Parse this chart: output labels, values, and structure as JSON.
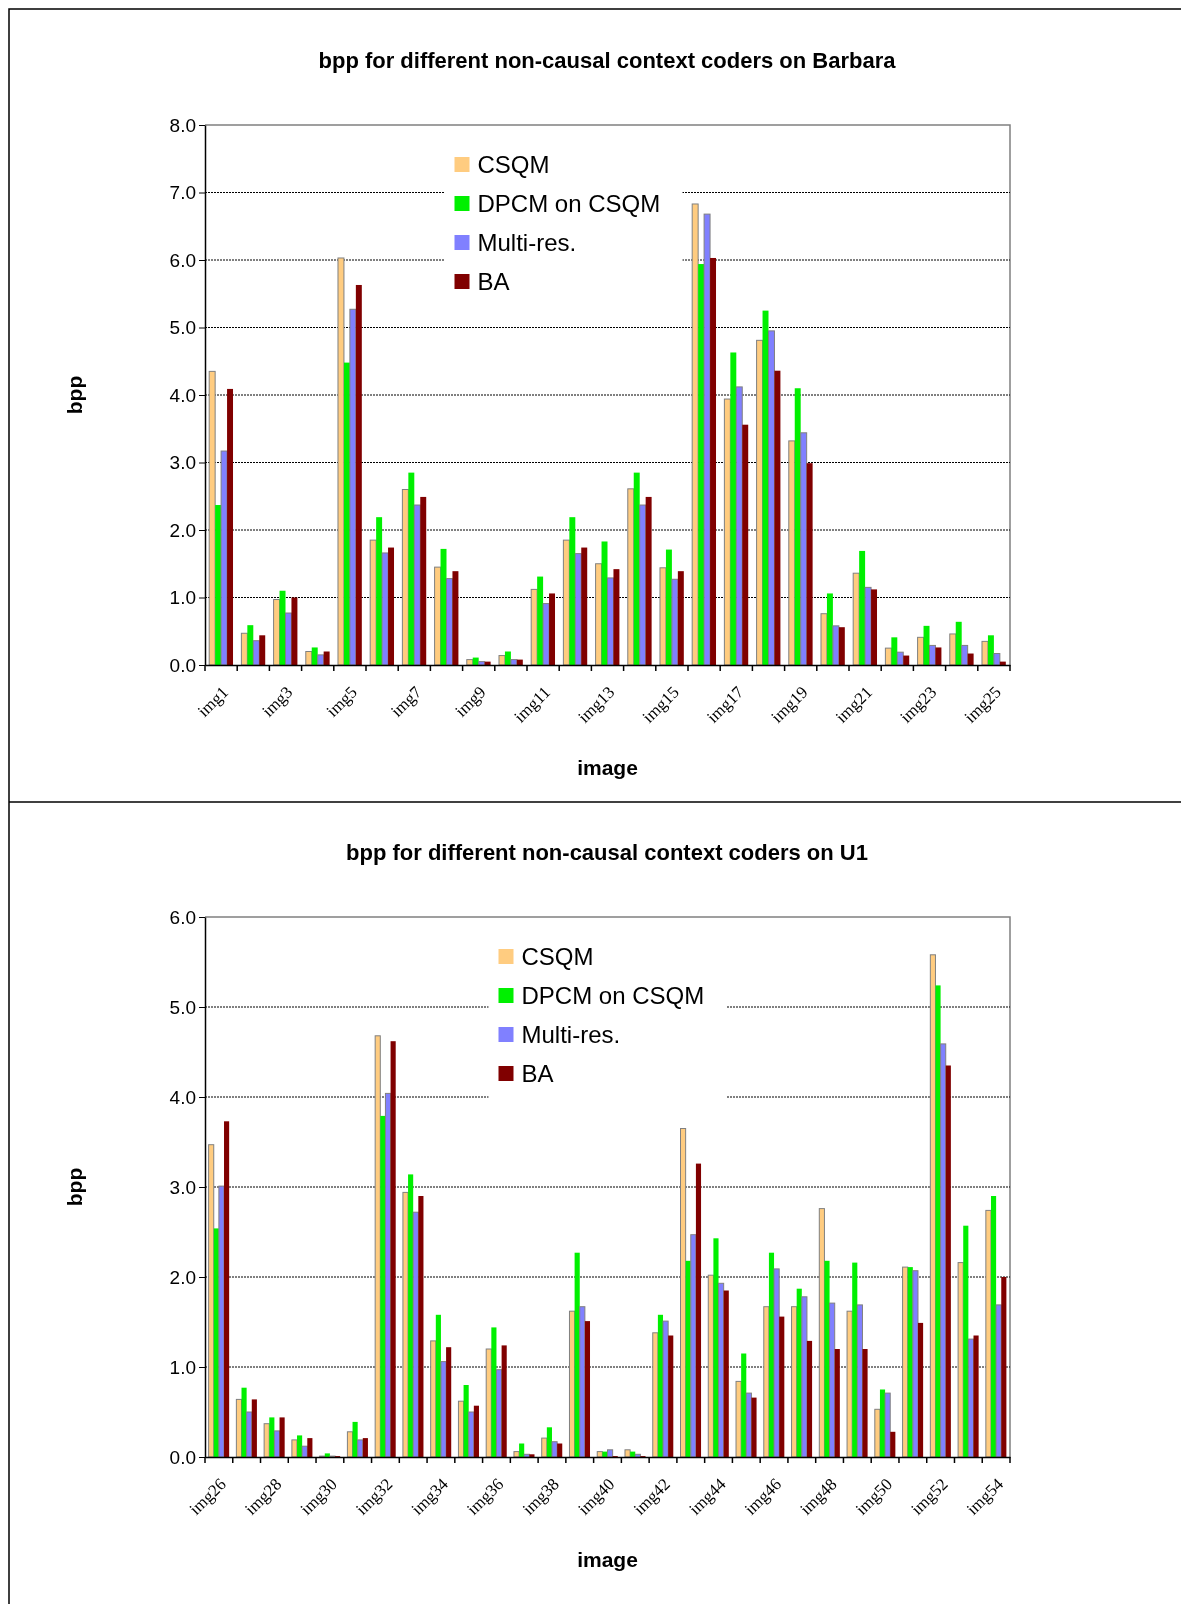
{
  "chart_data": [
    {
      "type": "bar",
      "title": "bpp for different non-causal context coders on Barbara",
      "xlabel": "image",
      "ylabel": "bpp",
      "categories": [
        "img1",
        null,
        "img3",
        null,
        "img5",
        null,
        "img7",
        null,
        "img9",
        null,
        "img11",
        null,
        "img13",
        null,
        "img15",
        null,
        "img17",
        null,
        "img19",
        null,
        "img21",
        null,
        "img23",
        null,
        "img25"
      ],
      "series": [
        {
          "name": "CSQM",
          "color": "#ffcc80",
          "values": [
            4.35,
            0.47,
            0.97,
            0.2,
            6.03,
            1.85,
            2.6,
            1.45,
            0.08,
            0.14,
            1.12,
            1.85,
            1.5,
            2.61,
            1.44,
            6.83,
            3.94,
            4.81,
            3.32,
            0.76,
            1.36,
            0.25,
            0.41,
            0.46,
            0.35
          ]
        },
        {
          "name": "DPCM on CSQM",
          "color": "#00f000",
          "values": [
            2.37,
            0.59,
            1.1,
            0.26,
            4.48,
            2.19,
            2.85,
            1.72,
            0.11,
            0.2,
            1.31,
            2.19,
            1.83,
            2.85,
            1.71,
            5.94,
            4.63,
            5.25,
            4.1,
            1.06,
            1.69,
            0.41,
            0.58,
            0.64,
            0.44
          ]
        },
        {
          "name": "Multi-res.",
          "color": "#8080ff",
          "values": [
            3.17,
            0.36,
            0.77,
            0.15,
            5.27,
            1.66,
            2.37,
            1.28,
            0.05,
            0.08,
            0.91,
            1.65,
            1.29,
            2.37,
            1.27,
            6.68,
            4.12,
            4.95,
            3.44,
            0.58,
            1.15,
            0.19,
            0.29,
            0.29,
            0.17
          ]
        },
        {
          "name": "BA",
          "color": "#800000",
          "values": [
            4.09,
            0.44,
            1.0,
            0.2,
            5.63,
            1.74,
            2.49,
            1.39,
            0.05,
            0.08,
            1.06,
            1.74,
            1.42,
            2.49,
            1.39,
            6.03,
            3.56,
            4.36,
            2.99,
            0.56,
            1.12,
            0.14,
            0.26,
            0.17,
            0.05
          ]
        }
      ],
      "ylim": [
        0,
        8
      ],
      "yticks": [
        {
          "value": 0,
          "label": "0.0"
        },
        {
          "value": 1,
          "label": "1.0"
        },
        {
          "value": 2,
          "label": "2.0"
        },
        {
          "value": 3,
          "label": "3.0"
        },
        {
          "value": 4,
          "label": "4.0"
        },
        {
          "value": 5,
          "label": "5.0"
        },
        {
          "value": 6,
          "label": "6.0"
        },
        {
          "value": 7,
          "label": "7.0"
        },
        {
          "value": 8,
          "label": "8.0"
        }
      ],
      "grid": "y",
      "legend": "top"
    },
    {
      "type": "bar",
      "title": "bpp for different non-causal context coders on U1",
      "xlabel": "image",
      "ylabel": "bpp",
      "categories": [
        "img26",
        null,
        "img28",
        null,
        "img30",
        null,
        "img32",
        null,
        "img34",
        null,
        "img36",
        null,
        "img38",
        null,
        "img40",
        null,
        "img42",
        null,
        "img44",
        null,
        "img46",
        null,
        "img48",
        null,
        "img50",
        null,
        "img52",
        null,
        "img54"
      ],
      "series": [
        {
          "name": "CSQM",
          "color": "#ffcc80",
          "values": [
            3.47,
            0.64,
            0.37,
            0.19,
            0.01,
            0.28,
            4.68,
            2.94,
            1.29,
            0.62,
            1.2,
            0.06,
            0.21,
            1.62,
            0.06,
            0.08,
            1.38,
            3.65,
            2.02,
            0.84,
            1.67,
            1.67,
            2.76,
            1.62,
            0.53,
            2.11,
            5.58,
            2.16,
            2.74
          ]
        },
        {
          "name": "DPCM on CSQM",
          "color": "#00f000",
          "values": [
            2.54,
            0.77,
            0.44,
            0.24,
            0.04,
            0.39,
            3.79,
            3.14,
            1.58,
            0.8,
            1.44,
            0.15,
            0.33,
            2.27,
            0.06,
            0.06,
            1.58,
            2.18,
            2.43,
            1.15,
            2.27,
            1.87,
            2.18,
            2.16,
            0.75,
            2.11,
            5.24,
            2.57,
            2.9
          ]
        },
        {
          "name": "Multi-res.",
          "color": "#8080ff",
          "values": [
            3.01,
            0.5,
            0.29,
            0.12,
            0.01,
            0.19,
            4.04,
            2.72,
            1.06,
            0.5,
            0.97,
            0.03,
            0.17,
            1.67,
            0.08,
            0.03,
            1.51,
            2.47,
            1.93,
            0.71,
            2.09,
            1.78,
            1.71,
            1.69,
            0.71,
            2.07,
            4.59,
            1.31,
            1.69
          ]
        },
        {
          "name": "BA",
          "color": "#800000",
          "values": [
            3.73,
            0.64,
            0.44,
            0.21,
            0.01,
            0.21,
            4.62,
            2.9,
            1.22,
            0.57,
            1.24,
            0.03,
            0.15,
            1.51,
            0.01,
            0.01,
            1.35,
            3.26,
            1.85,
            0.66,
            1.56,
            1.29,
            1.2,
            1.2,
            0.28,
            1.49,
            4.35,
            1.35,
            2.0
          ]
        }
      ],
      "ylim": [
        0,
        6
      ],
      "yticks": [
        {
          "value": 0,
          "label": "0.0"
        },
        {
          "value": 1,
          "label": "1.0"
        },
        {
          "value": 2,
          "label": "2.0"
        },
        {
          "value": 3,
          "label": "3.0"
        },
        {
          "value": 4,
          "label": "4.0"
        },
        {
          "value": 5,
          "label": "5.0"
        },
        {
          "value": 6,
          "label": "6.0"
        }
      ],
      "grid": "y",
      "legend": "top"
    }
  ]
}
